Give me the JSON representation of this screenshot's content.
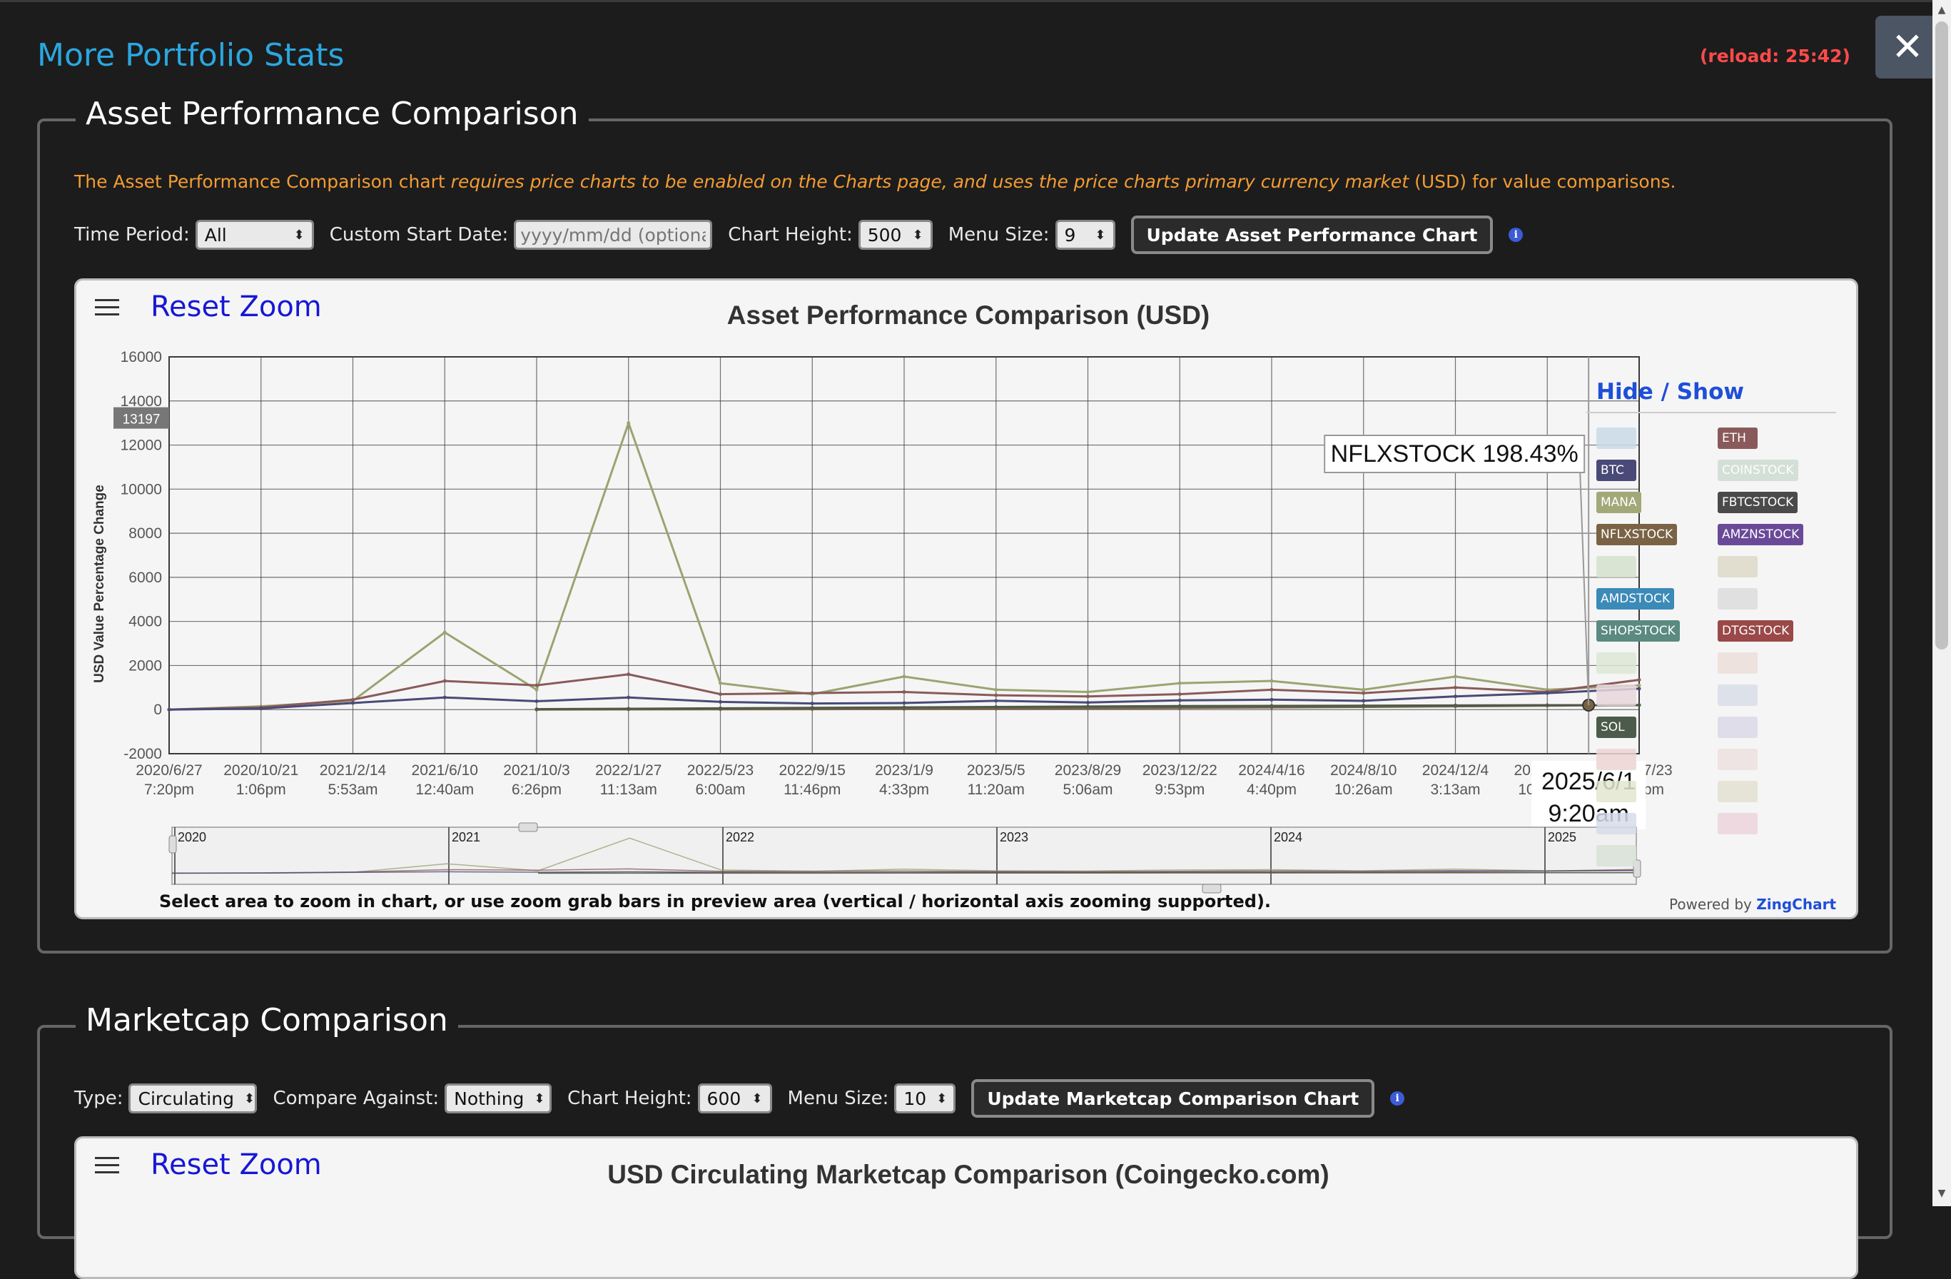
{
  "header": {
    "title": "More Portfolio Stats",
    "reload": "(reload: 25:42)",
    "close_label": "✕"
  },
  "asset_section": {
    "legend": "Asset Performance Comparison",
    "notice": {
      "part1": "The Asset Performance Comparison chart ",
      "part2": "requires price charts to be enabled on the Charts page, and uses the price charts primary currency market",
      "part3": " (USD) for value comparisons."
    },
    "controls": {
      "time_period_label": "Time Period:",
      "time_period_value": "All",
      "custom_start_label": "Custom Start Date:",
      "custom_start_placeholder": "yyyy/mm/dd (optional)",
      "chart_height_label": "Chart Height:",
      "chart_height_value": "500",
      "menu_size_label": "Menu Size:",
      "menu_size_value": "9",
      "update_button": "Update Asset Performance Chart"
    },
    "chart": {
      "reset_zoom": "Reset Zoom",
      "hide_show": "Hide / Show",
      "zoom_note": "Select area to zoom in chart, or use zoom grab bars in preview area (vertical / horizontal axis zooming supported).",
      "powered_prefix": "Powered by ",
      "powered_brand": "ZingChart"
    }
  },
  "marketcap_section": {
    "legend": "Marketcap Comparison",
    "controls": {
      "type_label": "Type:",
      "type_value": "Circulating",
      "compare_label": "Compare Against:",
      "compare_value": "Nothing",
      "chart_height_label": "Chart Height:",
      "chart_height_value": "600",
      "menu_size_label": "Menu Size:",
      "menu_size_value": "10",
      "update_button": "Update Marketcap Comparison Chart"
    },
    "chart": {
      "reset_zoom": "Reset Zoom",
      "title": "USD Circulating Marketcap Comparison (Coingecko.com)"
    }
  },
  "legend_items": [
    {
      "label": "",
      "color": "#c9d9e8",
      "active": false
    },
    {
      "label": "ETH",
      "color": "#8a5a5a",
      "active": true
    },
    {
      "label": "BTC",
      "color": "#4a4a78",
      "active": true
    },
    {
      "label": "COINSTOCK",
      "color": "#cfdcd2",
      "active": false
    },
    {
      "label": "MANA",
      "color": "#a3a878",
      "active": true
    },
    {
      "label": "FBTCSTOCK",
      "color": "#4a4a4a",
      "active": true
    },
    {
      "label": "NFLXSTOCK",
      "color": "#7a6345",
      "active": true
    },
    {
      "label": "AMZNSTOCK",
      "color": "#6a4a98",
      "active": true
    },
    {
      "label": "",
      "color": "#d5e0cc",
      "active": false
    },
    {
      "label": "",
      "color": "#ddd8c8",
      "active": false
    },
    {
      "label": "AMDSTOCK",
      "color": "#3b8ab8",
      "active": true
    },
    {
      "label": "",
      "color": "#dcdcdc",
      "active": false
    },
    {
      "label": "SHOPSTOCK",
      "color": "#5a8a80",
      "active": true
    },
    {
      "label": "DTGSTOCK",
      "color": "#9a4848",
      "active": true
    },
    {
      "label": "",
      "color": "#dde6d6",
      "active": false
    },
    {
      "label": "",
      "color": "#ecdedb",
      "active": false
    },
    {
      "label": "",
      "color": "#e8d6dc",
      "active": false
    },
    {
      "label": "",
      "color": "#d8dde8",
      "active": false
    },
    {
      "label": "SOL",
      "color": "#4d5b4a",
      "active": true
    },
    {
      "label": "",
      "color": "#dcd8e8",
      "active": false
    },
    {
      "label": "",
      "color": "#ecd3d3",
      "active": false
    },
    {
      "label": "",
      "color": "#ece0e0",
      "active": false
    },
    {
      "label": "",
      "color": "#e2e6cf",
      "active": false
    },
    {
      "label": "",
      "color": "#e2e0d0",
      "active": false
    },
    {
      "label": "",
      "color": "#d6dcea",
      "active": false
    },
    {
      "label": "",
      "color": "#ecd3dc",
      "active": false
    },
    {
      "label": "",
      "color": "#d8e2d8",
      "active": false
    }
  ],
  "chart_data": {
    "type": "line",
    "title": "Asset Performance Comparison (USD)",
    "ylabel": "USD Value Percentage Change",
    "ylim": [
      -2000,
      16000
    ],
    "y_ticks": [
      16000,
      14000,
      12000,
      10000,
      8000,
      6000,
      4000,
      2000,
      0,
      -2000
    ],
    "x_ticks": [
      [
        "2020/6/27",
        "7:20pm"
      ],
      [
        "2020/10/21",
        "1:06pm"
      ],
      [
        "2021/2/14",
        "5:53am"
      ],
      [
        "2021/6/10",
        "12:40am"
      ],
      [
        "2021/10/3",
        "6:26pm"
      ],
      [
        "2022/1/27",
        "11:13am"
      ],
      [
        "2022/5/23",
        "6:00am"
      ],
      [
        "2022/9/15",
        "11:46pm"
      ],
      [
        "2023/1/9",
        "4:33pm"
      ],
      [
        "2023/5/5",
        "11:20am"
      ],
      [
        "2023/8/29",
        "5:06am"
      ],
      [
        "2023/12/22",
        "9:53pm"
      ],
      [
        "2024/4/16",
        "4:40pm"
      ],
      [
        "2024/8/10",
        "10:26am"
      ],
      [
        "2024/12/4",
        "3:13am"
      ],
      [
        "2025/3/29",
        "10:00pm"
      ],
      [
        "2025/7/23",
        "4:46pm"
      ]
    ],
    "grid": true,
    "legend": "right",
    "crosshair_y_label": "13197",
    "tooltip": "NFLXSTOCK 198.43%",
    "crosshair_x_label": [
      "2025/6/1",
      "9:20am"
    ],
    "preview_years": [
      "2020",
      "2021",
      "2022",
      "2023",
      "2024",
      "2025"
    ],
    "x_index": [
      0,
      1,
      2,
      3,
      4,
      5,
      6,
      7,
      8,
      9,
      10,
      11,
      12,
      13,
      14,
      15,
      16
    ],
    "series": [
      {
        "name": "MANA",
        "color": "#9aa472",
        "values": [
          0,
          150,
          400,
          3500,
          900,
          13000,
          1200,
          700,
          1500,
          900,
          800,
          1200,
          1300,
          900,
          1500,
          900,
          1100
        ]
      },
      {
        "name": "ETH",
        "color": "#8a5a5a",
        "values": [
          0,
          100,
          450,
          1300,
          1100,
          1600,
          700,
          750,
          800,
          650,
          600,
          700,
          900,
          750,
          1000,
          800,
          1350
        ]
      },
      {
        "name": "BTC",
        "color": "#4a4a78",
        "values": [
          0,
          50,
          300,
          550,
          380,
          550,
          350,
          280,
          300,
          400,
          320,
          420,
          450,
          400,
          600,
          750,
          950
        ]
      },
      {
        "name": "NFLXSTOCK",
        "color": "#7a6345",
        "values": [
          null,
          null,
          null,
          null,
          0,
          10,
          15,
          20,
          30,
          40,
          60,
          80,
          100,
          120,
          150,
          180,
          210
        ]
      },
      {
        "name": "SOL",
        "color": "#4d5b4a",
        "values": [
          null,
          null,
          null,
          null,
          20,
          40,
          60,
          80,
          100,
          120,
          140,
          160,
          170,
          180,
          190,
          200,
          200
        ]
      }
    ]
  }
}
